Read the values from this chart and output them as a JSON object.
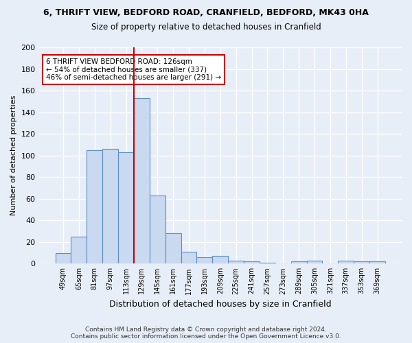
{
  "title": "6, THRIFT VIEW, BEDFORD ROAD, CRANFIELD, BEDFORD, MK43 0HA",
  "subtitle": "Size of property relative to detached houses in Cranfield",
  "xlabel": "Distribution of detached houses by size in Cranfield",
  "ylabel": "Number of detached properties",
  "bar_labels": [
    "49sqm",
    "65sqm",
    "81sqm",
    "97sqm",
    "113sqm",
    "129sqm",
    "145sqm",
    "161sqm",
    "177sqm",
    "193sqm",
    "209sqm",
    "225sqm",
    "241sqm",
    "257sqm",
    "273sqm",
    "289sqm",
    "305sqm",
    "321sqm",
    "337sqm",
    "353sqm",
    "369sqm"
  ],
  "bar_values": [
    10,
    25,
    105,
    106,
    103,
    153,
    63,
    28,
    11,
    6,
    7,
    3,
    2,
    1,
    0,
    2,
    3,
    0,
    3,
    2,
    2
  ],
  "bar_color": "#c8d9f0",
  "bar_edge_color": "#5b8ec4",
  "bg_color": "#e8eef7",
  "grid_color": "#ffffff",
  "vline_color": "#cc0000",
  "annotation_text": "6 THRIFT VIEW BEDFORD ROAD: 126sqm\n← 54% of detached houses are smaller (337)\n46% of semi-detached houses are larger (291) →",
  "annotation_box_color": "#ffffff",
  "annotation_box_edge": "#cc0000",
  "ylim": [
    0,
    200
  ],
  "yticks": [
    0,
    20,
    40,
    60,
    80,
    100,
    120,
    140,
    160,
    180,
    200
  ],
  "footer": "Contains HM Land Registry data © Crown copyright and database right 2024.\nContains public sector information licensed under the Open Government Licence v3.0."
}
